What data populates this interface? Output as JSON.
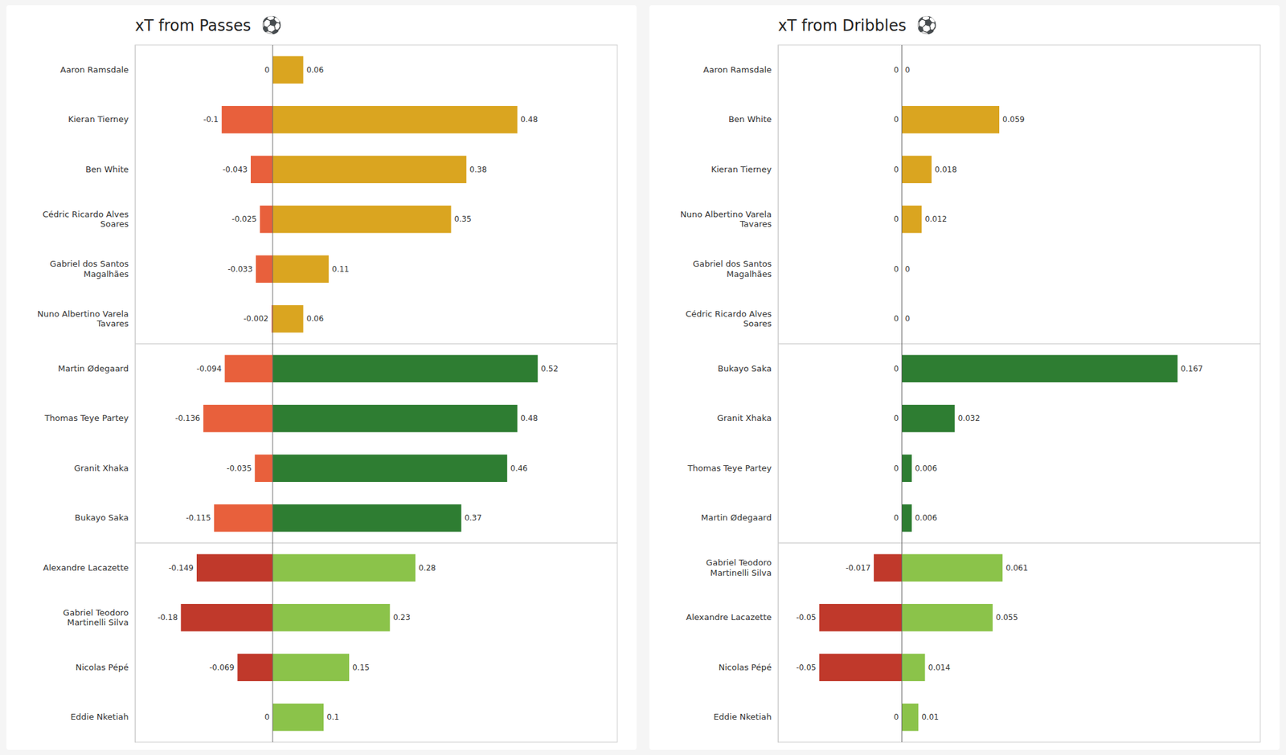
{
  "chart_data": [
    {
      "type": "bar",
      "orientation": "horizontal",
      "stacked": true,
      "data_labels": true,
      "tick_labels": "y",
      "grid": false,
      "title": "xT from Passes",
      "annotations": [
        "⚽"
      ],
      "categories": [
        "Aaron Ramsdale",
        "Kieran Tierney",
        "Ben White",
        "Cédric Ricardo Alves\nSoares",
        "Gabriel dos Santos\nMagalhães",
        "Nuno Albertino Varela\nTavares",
        "Martin Ødegaard",
        "Thomas Teye Partey",
        "Granit Xhaka",
        "Bukayo Saka",
        "Alexandre Lacazette",
        "Gabriel Teodoro\nMartinelli Silva",
        "Nicolas Pépé",
        "Eddie Nketiah"
      ],
      "series": [
        {
          "values": [
            0,
            -0.1,
            -0.043,
            -0.025,
            -0.033,
            -0.002,
            -0.094,
            -0.136,
            -0.035,
            -0.115,
            -0.149,
            -0.18,
            -0.069,
            0
          ],
          "colors": [
            "#E8603C",
            "#E8603C",
            "#E8603C",
            "#E8603C",
            "#E8603C",
            "#E8603C",
            "#E8603C",
            "#E8603C",
            "#E8603C",
            "#E8603C",
            "#C0392B",
            "#C0392B",
            "#C0392B",
            "#C0392B"
          ]
        },
        {
          "values": [
            0.06,
            0.48,
            0.38,
            0.35,
            0.11,
            0.06,
            0.52,
            0.48,
            0.46,
            0.37,
            0.28,
            0.23,
            0.15,
            0.1
          ],
          "colors": [
            "#DAA520",
            "#DAA520",
            "#DAA520",
            "#DAA520",
            "#DAA520",
            "#DAA520",
            "#2E7D32",
            "#2E7D32",
            "#2E7D32",
            "#2E7D32",
            "#8BC34A",
            "#8BC34A",
            "#8BC34A",
            "#8BC34A"
          ]
        }
      ],
      "xlim": [
        -0.27,
        0.676
      ]
    },
    {
      "type": "bar",
      "orientation": "horizontal",
      "stacked": true,
      "data_labels": true,
      "tick_labels": "y",
      "grid": false,
      "title": "xT from Dribbles",
      "annotations": [
        "⚽"
      ],
      "categories": [
        "Aaron Ramsdale",
        "Ben White",
        "Kieran Tierney",
        "Nuno Albertino Varela\nTavares",
        "Gabriel dos Santos\nMagalhães",
        "Cédric Ricardo Alves\nSoares",
        "Bukayo Saka",
        "Granit Xhaka",
        "Thomas Teye Partey",
        "Martin Ødegaard",
        "Gabriel Teodoro\nMartinelli Silva",
        "Alexandre Lacazette",
        "Nicolas Pépé",
        "Eddie Nketiah"
      ],
      "series": [
        {
          "values": [
            0,
            0,
            0,
            0,
            0,
            0,
            0,
            0,
            0,
            0,
            -0.017,
            -0.05,
            -0.05,
            0
          ],
          "colors": [
            "#E8603C",
            "#E8603C",
            "#E8603C",
            "#E8603C",
            "#E8603C",
            "#E8603C",
            "#E8603C",
            "#E8603C",
            "#E8603C",
            "#E8603C",
            "#C0392B",
            "#C0392B",
            "#C0392B",
            "#C0392B"
          ]
        },
        {
          "values": [
            0,
            0.059,
            0.018,
            0.012,
            0,
            0,
            0.167,
            0.032,
            0.006,
            0.006,
            0.061,
            0.055,
            0.014,
            0.01
          ],
          "colors": [
            "#DAA520",
            "#DAA520",
            "#DAA520",
            "#DAA520",
            "#DAA520",
            "#DAA520",
            "#2E7D32",
            "#2E7D32",
            "#2E7D32",
            "#2E7D32",
            "#8BC34A",
            "#8BC34A",
            "#8BC34A",
            "#8BC34A"
          ]
        }
      ],
      "xlim": [
        -0.075,
        0.2171
      ]
    }
  ]
}
